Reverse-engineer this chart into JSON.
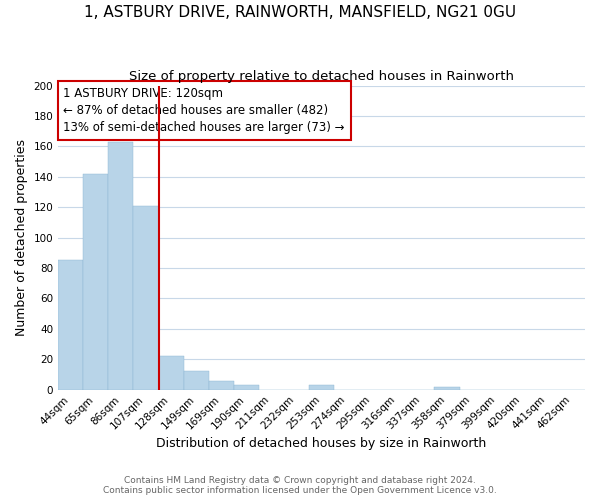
{
  "title": "1, ASTBURY DRIVE, RAINWORTH, MANSFIELD, NG21 0GU",
  "subtitle": "Size of property relative to detached houses in Rainworth",
  "xlabel": "Distribution of detached houses by size in Rainworth",
  "ylabel": "Number of detached properties",
  "bar_labels": [
    "44sqm",
    "65sqm",
    "86sqm",
    "107sqm",
    "128sqm",
    "149sqm",
    "169sqm",
    "190sqm",
    "211sqm",
    "232sqm",
    "253sqm",
    "274sqm",
    "295sqm",
    "316sqm",
    "337sqm",
    "358sqm",
    "379sqm",
    "399sqm",
    "420sqm",
    "441sqm",
    "462sqm"
  ],
  "bar_values": [
    85,
    142,
    163,
    121,
    22,
    12,
    6,
    3,
    0,
    0,
    3,
    0,
    0,
    0,
    0,
    2,
    0,
    0,
    0,
    0,
    0
  ],
  "bar_color": "#b8d4e8",
  "bar_edge_color": "#8ab4d0",
  "highlight_line_color": "#cc0000",
  "annotation_text": "1 ASTBURY DRIVE: 120sqm\n← 87% of detached houses are smaller (482)\n13% of semi-detached houses are larger (73) →",
  "annotation_box_color": "#ffffff",
  "annotation_box_edge_color": "#cc0000",
  "ylim": [
    0,
    200
  ],
  "yticks": [
    0,
    20,
    40,
    60,
    80,
    100,
    120,
    140,
    160,
    180,
    200
  ],
  "footer_line1": "Contains HM Land Registry data © Crown copyright and database right 2024.",
  "footer_line2": "Contains public sector information licensed under the Open Government Licence v3.0.",
  "background_color": "#ffffff",
  "grid_color": "#c8d8e8",
  "title_fontsize": 11,
  "subtitle_fontsize": 9.5,
  "axis_label_fontsize": 9,
  "tick_fontsize": 7.5,
  "annotation_fontsize": 8.5,
  "footer_fontsize": 6.5
}
